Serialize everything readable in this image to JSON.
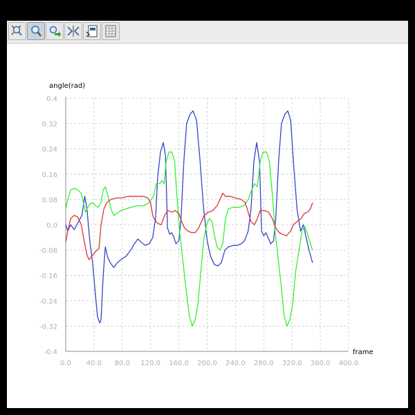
{
  "toolbar": {
    "buttons": [
      {
        "name": "zoom-reset-icon",
        "active": false
      },
      {
        "name": "zoom-icon",
        "active": true
      },
      {
        "name": "pan-icon",
        "active": false
      },
      {
        "name": "fit-icon",
        "active": false
      },
      {
        "name": "export-icon",
        "active": false
      },
      {
        "name": "table-icon",
        "active": false
      }
    ]
  },
  "chart_data": {
    "type": "line",
    "title": "",
    "xlabel": "frame",
    "ylabel": "angle(rad)",
    "xlim": [
      0,
      400
    ],
    "ylim": [
      -0.4,
      0.4
    ],
    "xticks": [
      "0.0",
      "40.0",
      "80.0",
      "120.0",
      "160.0",
      "200.0",
      "240.0",
      "280.0",
      "320.0",
      "360.0",
      "400.0"
    ],
    "yticks": [
      "0.4",
      "0.32",
      "0.24",
      "0.16",
      "0.08",
      "0.0",
      "-0.08",
      "-0.16",
      "-0.24",
      "-0.32",
      "-0.4"
    ],
    "grid": true,
    "series": [
      {
        "color": "#3344cc",
        "points": [
          [
            0,
            0.0
          ],
          [
            3,
            -0.02
          ],
          [
            7,
            0.0
          ],
          [
            12,
            -0.015
          ],
          [
            17,
            0.005
          ],
          [
            23,
            0.03
          ],
          [
            27,
            0.09
          ],
          [
            30,
            0.05
          ],
          [
            34,
            -0.05
          ],
          [
            38,
            -0.12
          ],
          [
            42,
            -0.22
          ],
          [
            45,
            -0.29
          ],
          [
            48,
            -0.31
          ],
          [
            50,
            -0.3
          ],
          [
            53,
            -0.16
          ],
          [
            56,
            -0.07
          ],
          [
            59,
            -0.1
          ],
          [
            63,
            -0.12
          ],
          [
            68,
            -0.135
          ],
          [
            73,
            -0.12
          ],
          [
            78,
            -0.11
          ],
          [
            85,
            -0.1
          ],
          [
            92,
            -0.08
          ],
          [
            97,
            -0.06
          ],
          [
            102,
            -0.045
          ],
          [
            107,
            -0.055
          ],
          [
            112,
            -0.065
          ],
          [
            118,
            -0.06
          ],
          [
            123,
            -0.04
          ],
          [
            127,
            0.02
          ],
          [
            130,
            0.15
          ],
          [
            134,
            0.23
          ],
          [
            138,
            0.26
          ],
          [
            141,
            0.22
          ],
          [
            144,
            -0.01
          ],
          [
            147,
            -0.03
          ],
          [
            150,
            -0.025
          ],
          [
            153,
            -0.04
          ],
          [
            156,
            -0.06
          ],
          [
            160,
            -0.05
          ],
          [
            163,
            0.02
          ],
          [
            167,
            0.2
          ],
          [
            171,
            0.32
          ],
          [
            176,
            0.35
          ],
          [
            180,
            0.36
          ],
          [
            185,
            0.33
          ],
          [
            190,
            0.2
          ],
          [
            195,
            0.05
          ],
          [
            200,
            -0.05
          ],
          [
            205,
            -0.1
          ],
          [
            210,
            -0.125
          ],
          [
            215,
            -0.13
          ],
          [
            220,
            -0.12
          ],
          [
            225,
            -0.08
          ],
          [
            230,
            -0.07
          ],
          [
            237,
            -0.065
          ],
          [
            243,
            -0.065
          ],
          [
            248,
            -0.06
          ],
          [
            253,
            -0.05
          ],
          [
            258,
            -0.02
          ],
          [
            262,
            0.05
          ],
          [
            266,
            0.2
          ],
          [
            270,
            0.26
          ],
          [
            274,
            0.2
          ],
          [
            277,
            -0.02
          ],
          [
            280,
            -0.035
          ],
          [
            283,
            -0.025
          ],
          [
            286,
            -0.04
          ],
          [
            290,
            -0.06
          ],
          [
            294,
            -0.05
          ],
          [
            297,
            0.02
          ],
          [
            301,
            0.2
          ],
          [
            305,
            0.32
          ],
          [
            310,
            0.35
          ],
          [
            314,
            0.36
          ],
          [
            318,
            0.33
          ],
          [
            322,
            0.2
          ],
          [
            327,
            0.05
          ],
          [
            332,
            -0.02
          ],
          [
            336,
            0.0
          ],
          [
            340,
            -0.04
          ],
          [
            344,
            -0.08
          ],
          [
            349,
            -0.12
          ]
        ]
      },
      {
        "color": "#33ee33",
        "points": [
          [
            0,
            0.05
          ],
          [
            3,
            0.08
          ],
          [
            7,
            0.11
          ],
          [
            12,
            0.115
          ],
          [
            17,
            0.11
          ],
          [
            22,
            0.1
          ],
          [
            25,
            0.07
          ],
          [
            28,
            0.04
          ],
          [
            30,
            0.05
          ],
          [
            34,
            0.065
          ],
          [
            38,
            0.07
          ],
          [
            42,
            0.06
          ],
          [
            46,
            0.055
          ],
          [
            50,
            0.07
          ],
          [
            53,
            0.11
          ],
          [
            56,
            0.12
          ],
          [
            60,
            0.09
          ],
          [
            64,
            0.05
          ],
          [
            68,
            0.03
          ],
          [
            72,
            0.035
          ],
          [
            78,
            0.045
          ],
          [
            85,
            0.05
          ],
          [
            92,
            0.055
          ],
          [
            100,
            0.06
          ],
          [
            110,
            0.06
          ],
          [
            118,
            0.07
          ],
          [
            124,
            0.09
          ],
          [
            128,
            0.13
          ],
          [
            133,
            0.13
          ],
          [
            136,
            0.14
          ],
          [
            139,
            0.13
          ],
          [
            142,
            0.2
          ],
          [
            146,
            0.23
          ],
          [
            150,
            0.23
          ],
          [
            154,
            0.2
          ],
          [
            157,
            0.1
          ],
          [
            161,
            -0.02
          ],
          [
            165,
            -0.1
          ],
          [
            170,
            -0.2
          ],
          [
            175,
            -0.29
          ],
          [
            179,
            -0.32
          ],
          [
            183,
            -0.3
          ],
          [
            187,
            -0.25
          ],
          [
            191,
            -0.15
          ],
          [
            195,
            -0.05
          ],
          [
            199,
            0.0
          ],
          [
            203,
            0.02
          ],
          [
            207,
            0.01
          ],
          [
            210,
            -0.03
          ],
          [
            214,
            -0.07
          ],
          [
            218,
            -0.08
          ],
          [
            222,
            -0.06
          ],
          [
            226,
            0.02
          ],
          [
            230,
            0.05
          ],
          [
            236,
            0.055
          ],
          [
            244,
            0.055
          ],
          [
            252,
            0.06
          ],
          [
            258,
            0.08
          ],
          [
            263,
            0.11
          ],
          [
            267,
            0.13
          ],
          [
            271,
            0.12
          ],
          [
            275,
            0.2
          ],
          [
            279,
            0.23
          ],
          [
            284,
            0.23
          ],
          [
            288,
            0.2
          ],
          [
            292,
            0.1
          ],
          [
            296,
            -0.02
          ],
          [
            300,
            -0.1
          ],
          [
            305,
            -0.2
          ],
          [
            309,
            -0.29
          ],
          [
            313,
            -0.32
          ],
          [
            317,
            -0.3
          ],
          [
            321,
            -0.25
          ],
          [
            325,
            -0.15
          ],
          [
            330,
            -0.08
          ],
          [
            334,
            -0.02
          ],
          [
            338,
            -0.005
          ],
          [
            342,
            -0.03
          ],
          [
            346,
            -0.06
          ],
          [
            349,
            -0.08
          ]
        ]
      },
      {
        "color": "#dd3333",
        "points": [
          [
            0,
            -0.055
          ],
          [
            3,
            -0.02
          ],
          [
            7,
            0.02
          ],
          [
            12,
            0.03
          ],
          [
            17,
            0.025
          ],
          [
            22,
            0.0
          ],
          [
            26,
            -0.05
          ],
          [
            30,
            -0.095
          ],
          [
            33,
            -0.11
          ],
          [
            37,
            -0.1
          ],
          [
            42,
            -0.085
          ],
          [
            47,
            -0.075
          ],
          [
            50,
            0.0
          ],
          [
            54,
            0.05
          ],
          [
            58,
            0.07
          ],
          [
            64,
            0.08
          ],
          [
            72,
            0.085
          ],
          [
            80,
            0.085
          ],
          [
            88,
            0.09
          ],
          [
            96,
            0.09
          ],
          [
            104,
            0.09
          ],
          [
            110,
            0.09
          ],
          [
            116,
            0.085
          ],
          [
            120,
            0.07
          ],
          [
            123,
            0.03
          ],
          [
            126,
            0.015
          ],
          [
            130,
            0.005
          ],
          [
            135,
            0.0
          ],
          [
            140,
            0.03
          ],
          [
            144,
            0.045
          ],
          [
            150,
            0.04
          ],
          [
            155,
            0.045
          ],
          [
            160,
            0.035
          ],
          [
            164,
            0.01
          ],
          [
            168,
            -0.01
          ],
          [
            173,
            -0.02
          ],
          [
            178,
            -0.025
          ],
          [
            183,
            -0.025
          ],
          [
            188,
            -0.01
          ],
          [
            192,
            0.01
          ],
          [
            196,
            0.03
          ],
          [
            202,
            0.04
          ],
          [
            208,
            0.045
          ],
          [
            214,
            0.06
          ],
          [
            218,
            0.08
          ],
          [
            222,
            0.1
          ],
          [
            226,
            0.09
          ],
          [
            232,
            0.09
          ],
          [
            240,
            0.085
          ],
          [
            248,
            0.08
          ],
          [
            254,
            0.07
          ],
          [
            258,
            0.04
          ],
          [
            262,
            0.01
          ],
          [
            267,
            0.0
          ],
          [
            271,
            0.02
          ],
          [
            275,
            0.045
          ],
          [
            281,
            0.045
          ],
          [
            287,
            0.04
          ],
          [
            292,
            0.02
          ],
          [
            297,
            -0.01
          ],
          [
            302,
            -0.025
          ],
          [
            307,
            -0.03
          ],
          [
            312,
            -0.035
          ],
          [
            318,
            -0.02
          ],
          [
            322,
            0.0
          ],
          [
            327,
            0.01
          ],
          [
            333,
            0.02
          ],
          [
            337,
            0.035
          ],
          [
            342,
            0.04
          ],
          [
            346,
            0.05
          ],
          [
            349,
            0.07
          ]
        ]
      }
    ]
  }
}
